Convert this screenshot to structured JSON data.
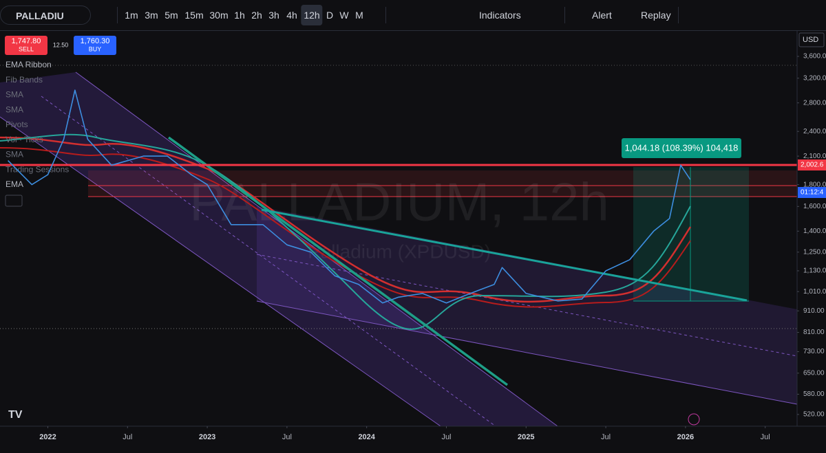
{
  "toolbar": {
    "symbol": "PALLADIU",
    "timeframes": [
      "1m",
      "3m",
      "5m",
      "15m",
      "30m",
      "1h",
      "2h",
      "3h",
      "4h",
      "12h",
      "D",
      "W",
      "M"
    ],
    "indicators": "Indicators",
    "alert": "Alert",
    "replay": "Replay"
  },
  "order_panel": {
    "sell_price": "1,747.80",
    "sell": "SELL",
    "spread": "12.50",
    "buy_price": "1,760.30",
    "buy": "BUY"
  },
  "legend": [
    "EMA Ribbon",
    "Fib Bands",
    "SMA",
    "SMA",
    "Pivots",
    "Vol · Ticks",
    "SMA",
    "Trading Sessions",
    "EMA"
  ],
  "watermark": {
    "title": "PALLADIUM, 12h",
    "subtitle": "Palladium (XPDUSD)"
  },
  "measure_label": "1,044.18 (108.39%) 104,418",
  "price_axis": {
    "currency": "USD",
    "last_price": "2,002.6",
    "countdown": "01:12:4"
  },
  "chart_data": {
    "type": "line",
    "color": "#3d8ee0",
    "log_scale": true,
    "x": [
      2021.75,
      2021.9,
      2022.0,
      2022.1,
      2022.17,
      2022.25,
      2022.4,
      2022.6,
      2022.75,
      2022.9,
      2023.0,
      2023.15,
      2023.35,
      2023.5,
      2023.65,
      2023.8,
      2023.95,
      2024.1,
      2024.2,
      2024.35,
      2024.5,
      2024.65,
      2024.8,
      2024.85,
      2025.0,
      2025.2,
      2025.35,
      2025.5,
      2025.65,
      2025.8,
      2025.9,
      2025.97,
      2026.03
    ],
    "values": [
      2050,
      1800,
      1900,
      2300,
      3000,
      2300,
      2000,
      2100,
      2100,
      1900,
      1800,
      1450,
      1450,
      1300,
      1250,
      1100,
      1050,
      950,
      980,
      1000,
      950,
      1000,
      1050,
      1150,
      1000,
      960,
      970,
      1130,
      1200,
      1400,
      1500,
      2000,
      1850
    ],
    "xlim": [
      2021.7,
      2026.7
    ],
    "ylim": [
      488,
      4146
    ],
    "xticks": [
      2022,
      {
        "value": 2022.5,
        "label": "Jul"
      },
      2023,
      {
        "value": 2023.5,
        "label": "Jul"
      },
      2024,
      {
        "value": 2024.5,
        "label": "Jul"
      },
      2025,
      {
        "value": 2025.5,
        "label": "Jul"
      },
      2026,
      {
        "value": 2026.5,
        "label": "Jul"
      }
    ],
    "yticks": [
      {
        "value": 3600,
        "label": "3,600.00"
      },
      {
        "value": 3200,
        "label": "3,200.00"
      },
      {
        "value": 2800,
        "label": "2,800.00"
      },
      {
        "value": 2400,
        "label": "2,400.00"
      },
      {
        "value": 2100,
        "label": "2,100.00"
      },
      {
        "value": 1800,
        "label": "1,800.00"
      },
      {
        "value": 1600,
        "label": "1,600.00"
      },
      {
        "value": 1400,
        "label": "1,400.00"
      },
      {
        "value": 1250,
        "label": "1,250.00"
      },
      {
        "value": 1130,
        "label": "1,130.00"
      },
      {
        "value": 1010,
        "label": "1,010.00"
      },
      {
        "value": 910,
        "label": "910.00"
      },
      {
        "value": 810,
        "label": "810.00"
      },
      {
        "value": 730,
        "label": "730.00"
      },
      {
        "value": 650,
        "label": "650.00"
      },
      {
        "value": 580,
        "label": "580.00"
      },
      {
        "value": 520,
        "label": "520.00"
      }
    ]
  }
}
